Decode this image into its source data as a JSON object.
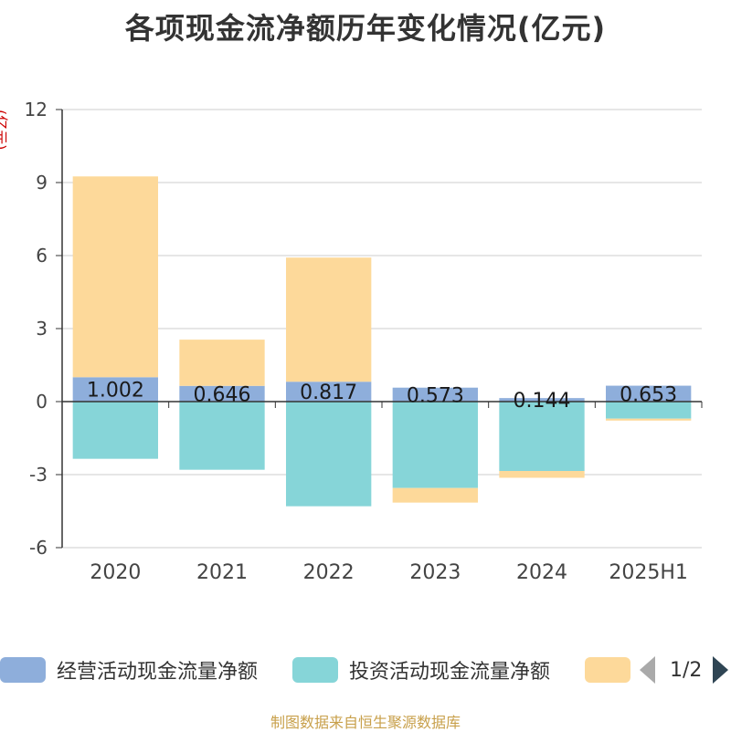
{
  "title": "各项现金流净额历年变化情况(亿元)",
  "unit": "(亿元)",
  "source": "制图数据来自恒生聚源数据库",
  "legend": {
    "items": [
      {
        "label": "经营活动现金流量净额",
        "color": "#8eaedb"
      },
      {
        "label": "投资活动现金流量净额",
        "color": "#86d5d8"
      },
      {
        "label": "",
        "color": "#fdd99a"
      }
    ],
    "page": "1/2"
  },
  "chart_data": {
    "type": "bar",
    "stacked": true,
    "categories": [
      "2020",
      "2021",
      "2022",
      "2023",
      "2024",
      "2025H1"
    ],
    "ylim": [
      -6,
      12
    ],
    "yticks": [
      -6,
      -3,
      0,
      3,
      6,
      9,
      12
    ],
    "grid": true,
    "legend_position": "bottom",
    "series": [
      {
        "name": "经营活动现金流量净额",
        "color": "#8eaedb",
        "values": [
          1.002,
          0.646,
          0.817,
          0.573,
          0.144,
          0.653
        ],
        "labels": [
          "1.002",
          "0.646",
          "0.817",
          "0.573",
          "0.144",
          "0.653"
        ]
      },
      {
        "name": "投资活动现金流量净额",
        "color": "#86d5d8",
        "values": [
          -2.35,
          -2.8,
          -4.3,
          -3.55,
          -2.85,
          -0.7
        ]
      },
      {
        "color": "#fdd99a",
        "values": [
          8.25,
          1.9,
          5.1,
          -0.6,
          -0.28,
          -0.08
        ]
      }
    ]
  }
}
